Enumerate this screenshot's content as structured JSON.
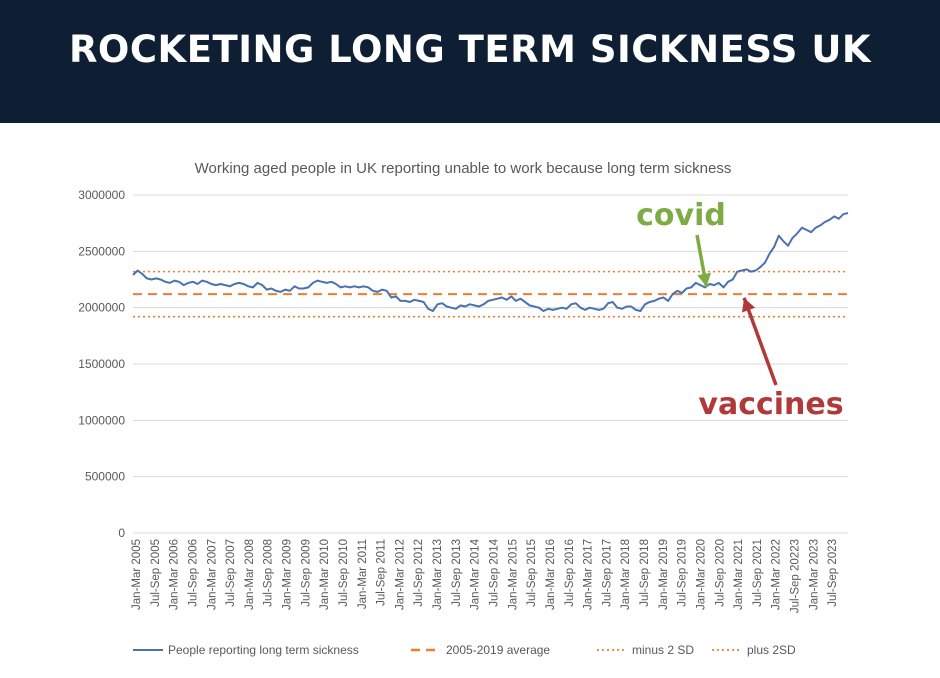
{
  "banner": {
    "title": "ROCKETING LONG TERM SICKNESS UK"
  },
  "colors": {
    "banner_bg": "#0f1f33",
    "series": "#4a72b0",
    "reference": "#ed7d31",
    "covid": "#7fab45",
    "vaccines": "#b03a3a",
    "grid": "#d9d9d9",
    "text": "#595959"
  },
  "chart_data": {
    "type": "line",
    "title": "Working aged people in UK reporting unable to work because long term sickness",
    "ylim": [
      0,
      3000000
    ],
    "yticks": [
      0,
      500000,
      1000000,
      1500000,
      2000000,
      2500000,
      3000000
    ],
    "ytick_labels": [
      "0",
      "500000",
      "1000000",
      "1500000",
      "2000000",
      "2500000",
      "3000000"
    ],
    "grid": "horizontal",
    "legend_position": "bottom",
    "xtick_labels": [
      "Jan-Mar 2005",
      "Jul-Sep 2005",
      "Jan-Mar 2006",
      "Jul-Sep 2006",
      "Jan-Mar 2007",
      "Jul-Sep 2007",
      "Jan-Mar 2008",
      "Jul-Sep 2008",
      "Jan-Mar 2009",
      "Jul-Sep 2009",
      "Jan-Mar 2010",
      "Jul-Sep 2010",
      "Jan-Mar 2011",
      "Jul-Sep 2011",
      "Jan-Mar 2012",
      "Jul-Sep 2012",
      "Jan-Mar 2013",
      "Jul-Sep 2013",
      "Jan-Mar 2014",
      "Jul-Sep 2014",
      "Jan-Mar 2015",
      "Jul-Sep 2015",
      "Jan-Mar 2016",
      "Jul-Sep 2016",
      "Jan-Mar 2017",
      "Jul-Sep 2017",
      "Jan-Mar 2018",
      "Jul-Sep 2018",
      "Jan-Mar 2019",
      "Jul-Sep 2019",
      "Jan-Mar 2020",
      "Jul-Sep 2020",
      "Jan-Mar 2021",
      "Jul-Sep 2021",
      "Jan-Mar 2022",
      "Jul-Sep 20223",
      "Jan-Mar 2023",
      "Jul-Sep 2023"
    ],
    "series": [
      {
        "name": "People reporting long term sickness",
        "style": "solid",
        "values": [
          2290000,
          2330000,
          2300000,
          2260000,
          2250000,
          2260000,
          2250000,
          2230000,
          2220000,
          2240000,
          2230000,
          2200000,
          2220000,
          2230000,
          2210000,
          2240000,
          2230000,
          2210000,
          2200000,
          2210000,
          2200000,
          2190000,
          2210000,
          2220000,
          2210000,
          2190000,
          2180000,
          2220000,
          2200000,
          2160000,
          2170000,
          2150000,
          2140000,
          2160000,
          2150000,
          2190000,
          2170000,
          2170000,
          2180000,
          2220000,
          2240000,
          2230000,
          2220000,
          2230000,
          2210000,
          2180000,
          2190000,
          2180000,
          2190000,
          2180000,
          2190000,
          2180000,
          2150000,
          2140000,
          2160000,
          2150000,
          2090000,
          2100000,
          2060000,
          2060000,
          2050000,
          2070000,
          2060000,
          2050000,
          1990000,
          1970000,
          2030000,
          2040000,
          2010000,
          2000000,
          1990000,
          2020000,
          2010000,
          2030000,
          2020000,
          2010000,
          2030000,
          2060000,
          2070000,
          2080000,
          2090000,
          2070000,
          2100000,
          2060000,
          2080000,
          2050000,
          2020000,
          2010000,
          2000000,
          1970000,
          1990000,
          1980000,
          1990000,
          2000000,
          1990000,
          2030000,
          2040000,
          2000000,
          1980000,
          2000000,
          1990000,
          1980000,
          1990000,
          2040000,
          2050000,
          2000000,
          1990000,
          2010000,
          2010000,
          1980000,
          1970000,
          2030000,
          2050000,
          2060000,
          2080000,
          2090000,
          2060000,
          2120000,
          2150000,
          2130000,
          2170000,
          2180000,
          2220000,
          2200000,
          2180000,
          2210000,
          2200000,
          2220000,
          2180000,
          2230000,
          2250000,
          2320000,
          2330000,
          2340000,
          2320000,
          2330000,
          2360000,
          2400000,
          2480000,
          2540000,
          2640000,
          2590000,
          2550000,
          2620000,
          2660000,
          2710000,
          2690000,
          2670000,
          2710000,
          2730000,
          2760000,
          2780000,
          2810000,
          2790000,
          2830000,
          2840000
        ]
      },
      {
        "name": "2005-2019 average",
        "style": "dashed",
        "value": 2120000
      },
      {
        "name": "minus 2 SD",
        "style": "dotted",
        "value": 1920000
      },
      {
        "name": "plus 2SD",
        "style": "dotted",
        "value": 2320000
      }
    ],
    "annotations": [
      {
        "text": "covid",
        "color": "#7fab45",
        "points_to_category": "Jan-Mar 2020"
      },
      {
        "text": "vaccines",
        "color": "#b03a3a",
        "points_to_category": "Jan-Mar 2021"
      }
    ]
  }
}
